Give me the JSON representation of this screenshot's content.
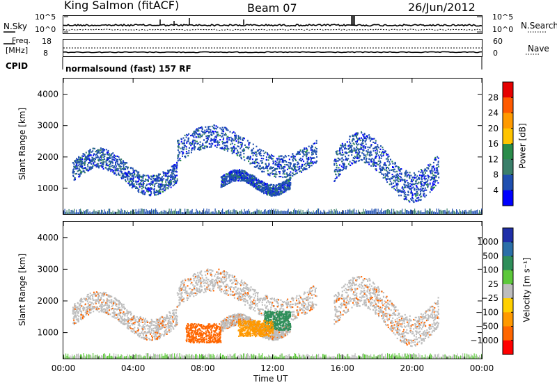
{
  "header": {
    "station": "King Salmon (fitACF)",
    "beam": "Beam 07",
    "date": "26/Jun/2012"
  },
  "noise_panel": {
    "left_label": "N.Sky",
    "right_label": "N.Search",
    "ticks_left": [
      "10^5",
      "10^0"
    ],
    "ticks_right": [
      "10^5",
      "10^0"
    ]
  },
  "freq_panel": {
    "left_label_1": "Freq.",
    "left_label_2": "[MHz]",
    "right_label": "Nave",
    "ticks_left": [
      "18",
      "8"
    ],
    "ticks_right": [
      "60",
      "0"
    ]
  },
  "cpid": {
    "label": "CPID",
    "text": "normalsound (fast) 157 RF"
  },
  "power_colorbar": {
    "label": "Power [dB]",
    "ticks": [
      "28",
      "24",
      "20",
      "16",
      "12",
      "8",
      "4"
    ],
    "colors": [
      "#e60000",
      "#ff5a00",
      "#ff9a00",
      "#ffc400",
      "#2a8c4a",
      "#3a7f6a",
      "#1f4fb0",
      "#0000ff"
    ]
  },
  "velocity_colorbar": {
    "label": "Velocity [m s⁻¹]",
    "ticks": [
      "1000",
      "500",
      "100",
      "25",
      "−25",
      "−100",
      "−500",
      "−1000"
    ],
    "colors": [
      "#1f2fa8",
      "#2b6fa8",
      "#2f8f5a",
      "#5cc83a",
      "#bdbdbd",
      "#ffd000",
      "#ff9900",
      "#ff6600",
      "#ff0000"
    ]
  },
  "chart_data": [
    {
      "type": "heatmap",
      "name": "power",
      "ylabel": "Slant Range [km]",
      "xlabel": "Time UT",
      "ylim": [
        180,
        4500
      ],
      "yticks": [
        1000,
        2000,
        3000,
        4000
      ],
      "xlim": [
        "00:00",
        "24:00"
      ],
      "xticks": [
        "00:00",
        "04:00",
        "08:00",
        "12:00",
        "16:00",
        "20:00",
        "00:00"
      ],
      "scatter_bands": [
        {
          "t_start": 0.5,
          "t_end": 6.5,
          "range_start": 1000,
          "range_end": 2100
        },
        {
          "t_start": 6.5,
          "t_end": 14.5,
          "range_start": 1600,
          "range_end": 2800
        },
        {
          "t_start": 9.0,
          "t_end": 13.0,
          "range_start": 900,
          "range_end": 1500
        },
        {
          "t_start": 15.5,
          "t_end": 21.5,
          "range_start": 900,
          "range_end": 2500
        }
      ]
    },
    {
      "type": "heatmap",
      "name": "velocity",
      "ylabel": "Slant Range [km]",
      "xlabel": "Time UT",
      "ylim": [
        180,
        4500
      ],
      "yticks": [
        1000,
        2000,
        3000,
        4000
      ],
      "xlim": [
        "00:00",
        "24:00"
      ],
      "xticks": [
        "00:00",
        "04:00",
        "08:00",
        "12:00",
        "16:00",
        "20:00",
        "00:00"
      ],
      "features": [
        {
          "t_start": 11.5,
          "t_end": 13.0,
          "range_start": 1100,
          "range_end": 1700,
          "velocity": 500
        },
        {
          "t_start": 7.0,
          "t_end": 9.0,
          "range_start": 700,
          "range_end": 1300,
          "velocity": -500
        },
        {
          "t_start": 10.0,
          "t_end": 12.0,
          "range_start": 900,
          "range_end": 1400,
          "velocity": -100
        }
      ]
    }
  ],
  "xaxis_title": "Time UT",
  "yaxis_title": "Slant Range [km]"
}
